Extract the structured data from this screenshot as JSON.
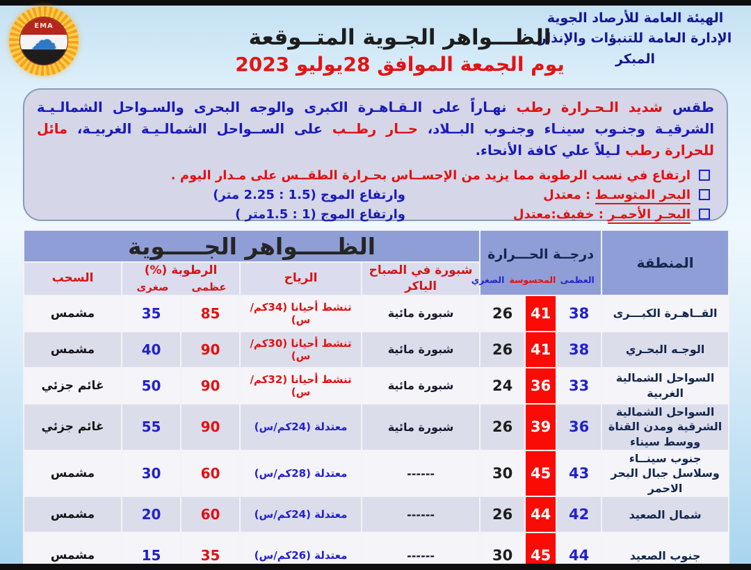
{
  "colors": {
    "accent_red": "#e01212",
    "text_blue": "#1a1ab8",
    "dark_navy": "#13264d",
    "felt_temp_bg": "#fb0b06",
    "header_blue": "#8f9ed6",
    "subheader_lavender": "#dbdcee"
  },
  "icons": {
    "cloud_glyph": "☁"
  },
  "header": {
    "org_line1": "الهيئة العامة للأرصاد الجوية",
    "org_line2": "الإدارة العامة للتنبؤات والإنذار المبكر",
    "title": "الظـــواهر الجـوية المتــوقعة",
    "date_line": "يوم الجمعة الموافق 28يوليو 2023",
    "logo_text": "EMA"
  },
  "summary": {
    "paragraph_segments": [
      {
        "text": "طقس ",
        "color": "blue"
      },
      {
        "text": "شديد الـحـرارة رطب ",
        "color": "red"
      },
      {
        "text": "نهـاراً على الـقـاهـرة الكبرى والوجه البحرى والسـواحل الشمالـيـة الشرقيـة وجنـوب سينـاء وجنـوب البــلاد، ",
        "color": "blue"
      },
      {
        "text": "حــار رطــب ",
        "color": "red"
      },
      {
        "text": "على الســواحل الشمالـيـة الغربيـة، ",
        "color": "blue"
      },
      {
        "text": "مائل للحرارة رطب ",
        "color": "red"
      },
      {
        "text": "لـيلاً علي كافة الأنحاء.",
        "color": "blue"
      }
    ],
    "bullets": [
      {
        "label_segments": [
          {
            "text": "ارتفاع في نسب الرطوبة مما يزيد من الإحســاس بحـرارة الطقــس على مـدار اليوم .",
            "color": "red"
          }
        ],
        "wave_text": null
      },
      {
        "label_segments": [
          {
            "text": "البحر المتوسـط",
            "color": "red",
            "underline": true
          },
          {
            "text": " : معتدل",
            "color": "red"
          }
        ],
        "wave_text": "وارتفاع الموج (1.5 : 2.25 متر)"
      },
      {
        "label_segments": [
          {
            "text": "البحـر الأحمـر",
            "color": "red",
            "underline": true
          },
          {
            "text": " : خفيف:معتدل",
            "color": "red"
          }
        ],
        "wave_text": "وارتفاع الموج (1  :  1.5متر )"
      }
    ]
  },
  "table": {
    "main_header": "الظـــــواهر الجـــــوية",
    "temp_header": "درجــة الحـــرارة",
    "temp_sub": {
      "max": "العظمى",
      "felt": "المحسوسة",
      "min": "الصغري"
    },
    "region_header": "المنطقة",
    "columns": {
      "fog": "شبورة  في الصباح الباكر",
      "wind": "الرياح",
      "humidity_title": "الرطوبة (%)",
      "humidity_max": "عظمى",
      "humidity_min": "صغرى",
      "clouds": "السحب"
    },
    "rows": [
      {
        "region": "القــاهـرة الكبـــرى",
        "t_max": "38",
        "t_felt": "41",
        "t_min": "26",
        "fog": "شبورة مائية",
        "wind": "تنشط أحيانا (34كم/س)",
        "wind_color": "red",
        "hum_max": "85",
        "hum_min": "35",
        "clouds": "مشمس"
      },
      {
        "region": "الوجـه البحـري",
        "t_max": "38",
        "t_felt": "41",
        "t_min": "26",
        "fog": "شبورة مائية",
        "wind": "تنشط أحيانا (30كم/س)",
        "wind_color": "red",
        "hum_max": "90",
        "hum_min": "40",
        "clouds": "مشمس"
      },
      {
        "region": "السواحل الشمالية الغربية",
        "t_max": "33",
        "t_felt": "36",
        "t_min": "24",
        "fog": "شبورة مائية",
        "wind": "تنشط أحيانا (32كم/س)",
        "wind_color": "red",
        "hum_max": "90",
        "hum_min": "50",
        "clouds": "غائم جزئي"
      },
      {
        "region": "السواحل الشمالية الشرقية ومدن القناة ووسط سيناء",
        "t_max": "36",
        "t_felt": "39",
        "t_min": "26",
        "fog": "شبورة مائية",
        "wind": "معتدلة  (24كم/س)",
        "wind_color": "blue",
        "hum_max": "90",
        "hum_min": "55",
        "clouds": "غائم جزئي"
      },
      {
        "region": "جنوب سينــاء وسلاسل جبال البحر الاحمر",
        "t_max": "43",
        "t_felt": "45",
        "t_min": "30",
        "fog": "------",
        "wind": "معتدلة  (28كم/س)",
        "wind_color": "blue",
        "hum_max": "60",
        "hum_min": "30",
        "clouds": "مشمس"
      },
      {
        "region": "شمال الصعيد",
        "t_max": "42",
        "t_felt": "44",
        "t_min": "26",
        "fog": "------",
        "wind": "معتدلة  (24كم/س)",
        "wind_color": "blue",
        "hum_max": "60",
        "hum_min": "20",
        "clouds": "مشمس"
      },
      {
        "region": "جنوب الصعيد",
        "t_max": "44",
        "t_felt": "45",
        "t_min": "30",
        "fog": "------",
        "wind": "معتدلة  (26كم/س)",
        "wind_color": "blue",
        "hum_max": "35",
        "hum_min": "15",
        "clouds": "مشمس"
      }
    ]
  }
}
